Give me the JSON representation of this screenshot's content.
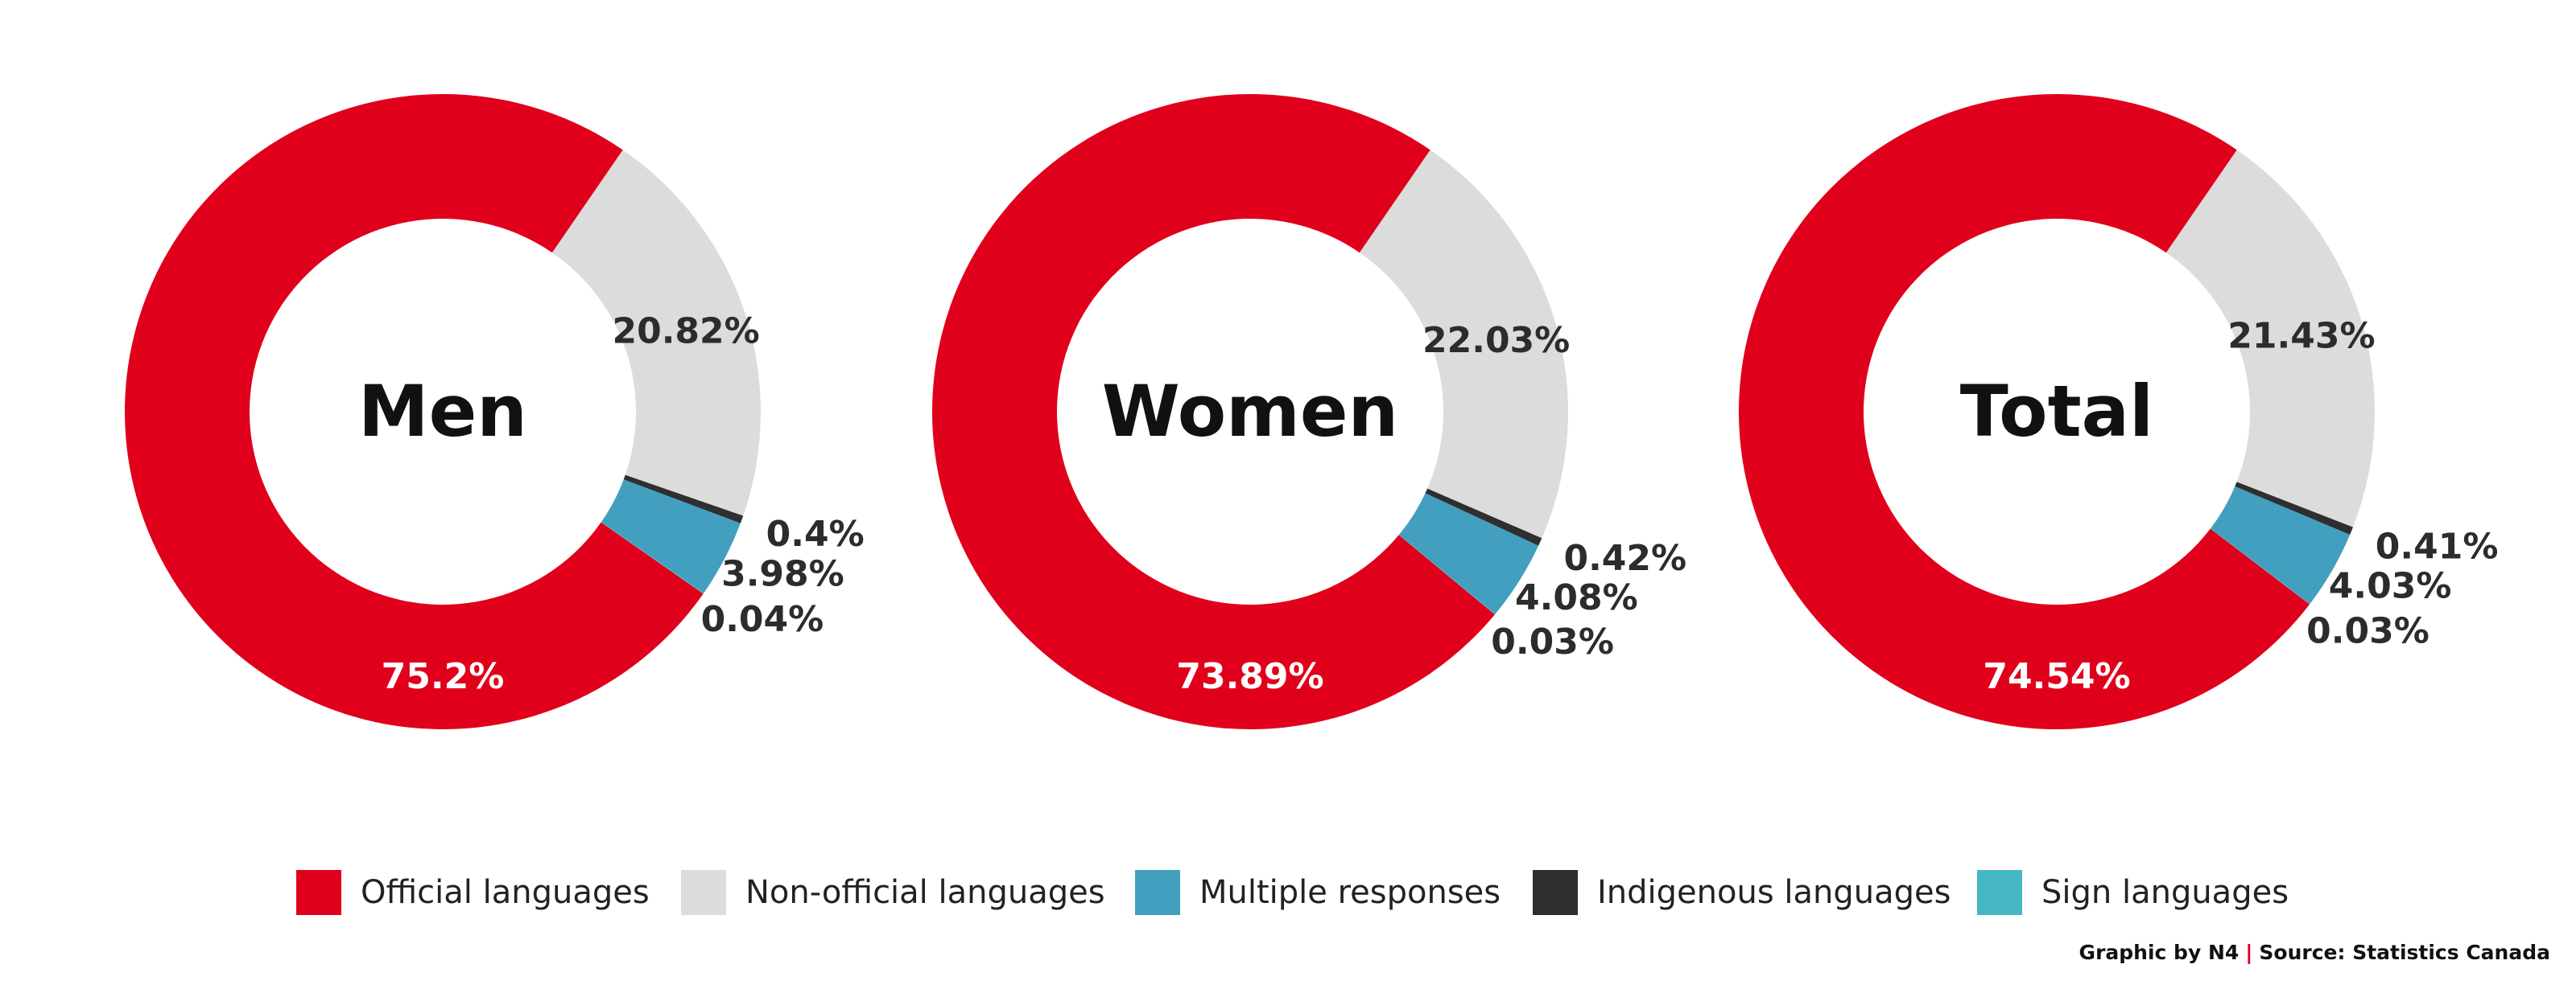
{
  "colors": {
    "official": "#e0001b",
    "non_official": "#dcdcdc",
    "multiple": "#429fc0",
    "indigenous": "#2f2f2f",
    "sign": "#46b8c4"
  },
  "chart_data": [
    {
      "type": "pie",
      "title": "Men",
      "slices": [
        {
          "category": "Official languages",
          "value": 75.2,
          "label": "75.2%"
        },
        {
          "category": "Sign languages",
          "value": 0.04,
          "label": "0.04%"
        },
        {
          "category": "Multiple responses",
          "value": 3.98,
          "label": "3.98%"
        },
        {
          "category": "Indigenous languages",
          "value": 0.4,
          "label": "0.4%"
        },
        {
          "category": "Non-official languages",
          "value": 20.82,
          "label": "20.82%"
        }
      ]
    },
    {
      "type": "pie",
      "title": "Women",
      "slices": [
        {
          "category": "Official languages",
          "value": 73.89,
          "label": "73.89%"
        },
        {
          "category": "Sign languages",
          "value": 0.03,
          "label": "0.03%"
        },
        {
          "category": "Multiple responses",
          "value": 4.08,
          "label": "4.08%"
        },
        {
          "category": "Indigenous languages",
          "value": 0.42,
          "label": "0.42%"
        },
        {
          "category": "Non-official languages",
          "value": 22.03,
          "label": "22.03%"
        }
      ]
    },
    {
      "type": "pie",
      "title": "Total",
      "slices": [
        {
          "category": "Official languages",
          "value": 74.54,
          "label": "74.54%"
        },
        {
          "category": "Sign languages",
          "value": 0.03,
          "label": "0.03%"
        },
        {
          "category": "Multiple responses",
          "value": 4.03,
          "label": "4.03%"
        },
        {
          "category": "Indigenous languages",
          "value": 0.41,
          "label": "0.41%"
        },
        {
          "category": "Non-official languages",
          "value": 21.43,
          "label": "21.43%"
        }
      ]
    }
  ],
  "legend": [
    {
      "label": "Official languages",
      "color": "#e0001b"
    },
    {
      "label": "Non-official languages",
      "color": "#dcdcdc"
    },
    {
      "label": "Multiple responses",
      "color": "#429fc0"
    },
    {
      "label": "Indigenous languages",
      "color": "#2f2f2f"
    },
    {
      "label": "Sign languages",
      "color": "#46b8c4"
    }
  ],
  "credit": {
    "graphic": "Graphic by N4",
    "separator": "|",
    "source": "Source: Statistics Canada"
  }
}
